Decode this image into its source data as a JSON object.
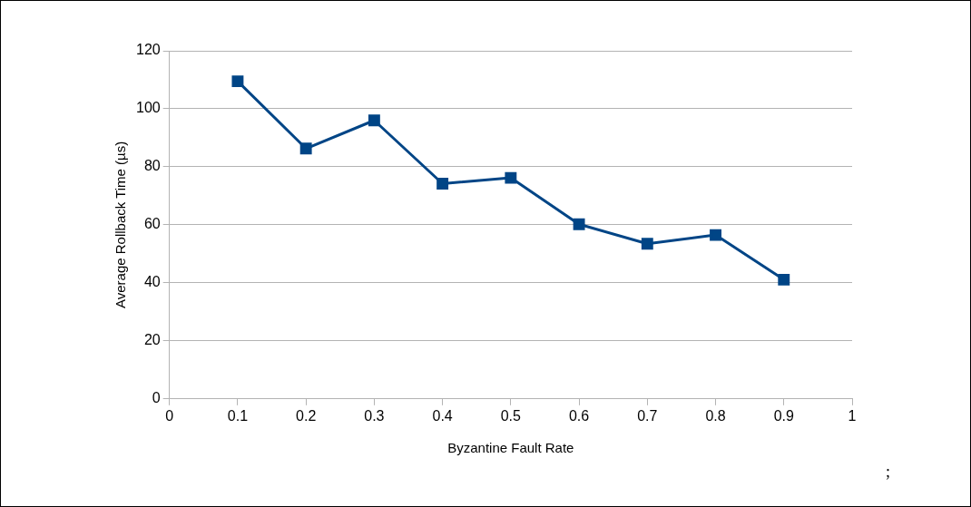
{
  "chart_data": {
    "type": "line",
    "xlabel": "Byzantine Fault Rate",
    "ylabel": "Average Rollback Time (µs)",
    "x": [
      0.1,
      0.2,
      0.3,
      0.4,
      0.5,
      0.6,
      0.7,
      0.8,
      0.9
    ],
    "series": [
      {
        "color": "#004586",
        "values": [
          109.5,
          86.3,
          96,
          74.2,
          76.2,
          60.2,
          53.5,
          56.5,
          41.1
        ]
      }
    ],
    "xlim": [
      0,
      1
    ],
    "xticks": [
      0,
      0.1,
      0.2,
      0.3,
      0.4,
      0.5,
      0.6,
      0.7,
      0.8,
      0.9,
      1
    ],
    "ylim": [
      0,
      120
    ],
    "yticks": [
      0,
      20,
      40,
      60,
      80,
      100,
      120
    ],
    "grid": "y",
    "legend": false,
    "marker": "square",
    "line_style": "solid",
    "annotations": [
      ";"
    ]
  }
}
